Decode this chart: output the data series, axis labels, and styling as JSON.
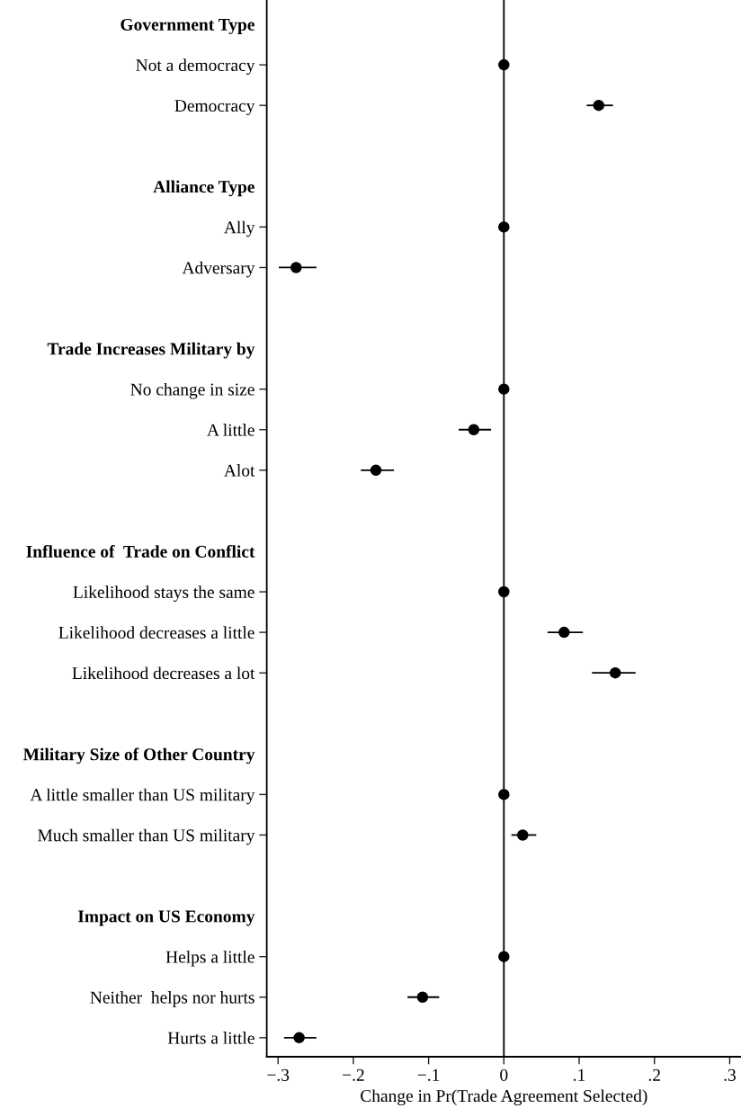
{
  "chart_data": {
    "type": "scatter",
    "orientation": "horizontal",
    "xlabel": "Change in Pr(Trade Agreement Selected)",
    "categories": [
      "Government Type",
      "Not a democracy",
      "Democracy",
      null,
      "Alliance Type",
      "Ally",
      "Adversary",
      null,
      "Trade Increases Military by",
      "No change in size",
      "A little",
      "Alot",
      null,
      "Influence of  Trade on Conflict",
      "Likelihood stays the same",
      "Likelihood decreases a little",
      "Likelihood decreases a lot",
      null,
      "Military Size of Other Country",
      "A little smaller than US military",
      "Much smaller than US military",
      null,
      "Impact on US Economy",
      "Helps a little",
      "Neither  helps nor hurts",
      "Hurts a little"
    ],
    "series": [
      {
        "color": "#000000",
        "values": [
          null,
          0,
          0.126,
          null,
          null,
          0,
          -0.276,
          null,
          null,
          0,
          -0.04,
          -0.17,
          null,
          null,
          0,
          0.08,
          0.148,
          null,
          null,
          0,
          0.025,
          null,
          null,
          0,
          -0.108,
          -0.272
        ],
        "errors": [
          null,
          null,
          [
            0.11,
            0.145
          ],
          null,
          null,
          null,
          [
            -0.299,
            -0.249
          ],
          null,
          null,
          null,
          [
            -0.06,
            -0.017
          ],
          [
            -0.19,
            -0.146
          ],
          null,
          null,
          null,
          [
            0.058,
            0.105
          ],
          [
            0.117,
            0.175
          ],
          null,
          null,
          null,
          [
            0.01,
            0.043
          ],
          null,
          null,
          null,
          [
            -0.128,
            -0.086
          ],
          [
            -0.292,
            -0.249
          ]
        ]
      }
    ],
    "xlim": [
      -0.315,
      0.315
    ],
    "xticks": [
      {
        "value": -0.3,
        "label": "−.3"
      },
      {
        "value": -0.2,
        "label": "−.2"
      },
      {
        "value": -0.1,
        "label": "−.1"
      },
      0,
      {
        "value": 0.1,
        "label": ".1"
      },
      {
        "value": 0.2,
        "label": ".2"
      },
      {
        "value": 0.3,
        "label": ".3"
      }
    ],
    "ref_lines": [
      {
        "axis": "x",
        "value": 0,
        "color": "#000000"
      }
    ],
    "marker": "circle",
    "grid": false,
    "legend": false
  }
}
